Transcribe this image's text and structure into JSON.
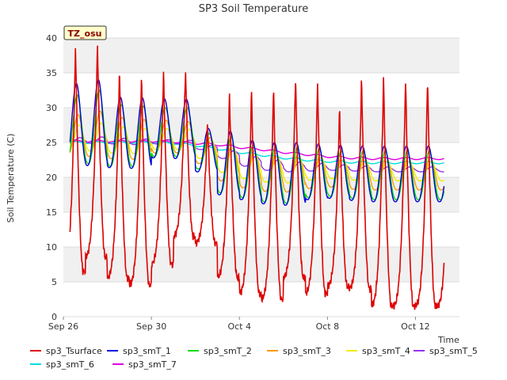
{
  "chart_data": {
    "type": "line",
    "title": "SP3 Soil Temperature",
    "xlabel": "Time",
    "ylabel": "Soil Temperature (C)",
    "site_label": "TZ_osu",
    "xlim": [
      0,
      18
    ],
    "ylim": [
      0,
      40
    ],
    "yticks": [
      0,
      5,
      10,
      15,
      20,
      25,
      30,
      35,
      40
    ],
    "xticks": [
      {
        "day": 0,
        "label": "Sep 26"
      },
      {
        "day": 4,
        "label": "Sep 30"
      },
      {
        "day": 8,
        "label": "Oct 4"
      },
      {
        "day": 12,
        "label": "Oct 8"
      },
      {
        "day": 16,
        "label": "Oct 12"
      }
    ],
    "x_data_range": [
      0.3,
      17.3
    ],
    "series": [
      {
        "name": "sp3_Tsurface",
        "color": "#dd0000",
        "daily_max": [
          39.0,
          39.3,
          35.6,
          34.8,
          35.3,
          35.6,
          28.0,
          31.9,
          32.6,
          33.3,
          34.6,
          33.7,
          30.0,
          34.2,
          34.5
        ],
        "daily_min": [
          6.5,
          8.5,
          5.5,
          4.5,
          7.5,
          11.5,
          10.5,
          5.6,
          3.3,
          2.5,
          5.6,
          3.3,
          4.3,
          4.0,
          1.5
        ]
      },
      {
        "name": "sp3_smT_1",
        "color": "#0000dd",
        "daily_max": [
          33.5,
          34.0,
          31.5,
          31.4,
          31.3,
          31.2,
          27.0,
          26.6,
          25.3,
          25.0,
          25.0,
          24.8,
          24.6,
          24.5,
          24.5
        ],
        "daily_min": [
          21.8,
          21.7,
          21.4,
          21.3,
          22.8,
          22.7,
          20.8,
          17.5,
          16.8,
          16.2,
          16.0,
          16.8,
          17.0,
          16.7,
          16.5
        ]
      },
      {
        "name": "sp3_smT_2",
        "color": "#00dd00",
        "daily_max": [
          31.8,
          32.5,
          30.4,
          30.2,
          30.0,
          30.0,
          26.3,
          25.8,
          24.6,
          24.3,
          24.3,
          24.1,
          23.8,
          23.8,
          23.8
        ],
        "daily_min": [
          22.0,
          22.0,
          21.6,
          21.6,
          23.0,
          23.0,
          21.2,
          17.8,
          17.1,
          16.5,
          16.3,
          17.1,
          17.3,
          17.0,
          16.8
        ]
      },
      {
        "name": "sp3_smT_3",
        "color": "#ff9900",
        "daily_max": [
          29.0,
          29.5,
          28.6,
          28.3,
          28.2,
          28.0,
          25.7,
          24.8,
          23.8,
          23.5,
          23.4,
          23.2,
          23.0,
          23.0,
          22.9
        ],
        "daily_min": [
          23.0,
          23.0,
          22.7,
          22.6,
          23.5,
          23.5,
          22.0,
          19.5,
          18.5,
          18.0,
          17.9,
          18.4,
          18.6,
          18.3,
          18.2
        ]
      },
      {
        "name": "sp3_smT_4",
        "color": "#eeee00",
        "daily_max": [
          27.5,
          27.8,
          27.2,
          27.0,
          27.0,
          26.9,
          25.3,
          24.2,
          23.3,
          23.0,
          22.9,
          22.8,
          22.5,
          22.4,
          22.3
        ],
        "daily_min": [
          23.8,
          23.8,
          23.5,
          23.4,
          24.0,
          24.0,
          22.7,
          20.7,
          19.8,
          19.3,
          19.2,
          19.6,
          19.8,
          19.6,
          19.5
        ]
      },
      {
        "name": "sp3_smT_5",
        "color": "#9933ee",
        "daily_max": [
          25.7,
          25.8,
          25.6,
          25.5,
          25.4,
          25.3,
          24.6,
          23.8,
          23.0,
          22.5,
          22.2,
          22.0,
          21.8,
          21.6,
          21.5
        ],
        "daily_min": [
          24.9,
          24.9,
          24.8,
          24.7,
          24.8,
          24.8,
          24.0,
          22.7,
          21.6,
          21.0,
          20.8,
          20.9,
          21.0,
          20.9,
          20.8
        ]
      },
      {
        "name": "sp3_smT_6",
        "color": "#00dddd",
        "daily_mean": [
          25.0,
          25.0,
          25.0,
          25.0,
          25.0,
          24.9,
          24.6,
          24.1,
          23.6,
          23.2,
          22.8,
          22.5,
          22.3,
          22.2,
          22.1
        ]
      },
      {
        "name": "sp3_smT_7",
        "color": "#dd00dd",
        "daily_mean": [
          25.2,
          25.2,
          25.2,
          25.2,
          25.2,
          25.1,
          24.9,
          24.7,
          24.3,
          24.0,
          23.6,
          23.3,
          23.0,
          22.8,
          22.7
        ]
      }
    ]
  }
}
